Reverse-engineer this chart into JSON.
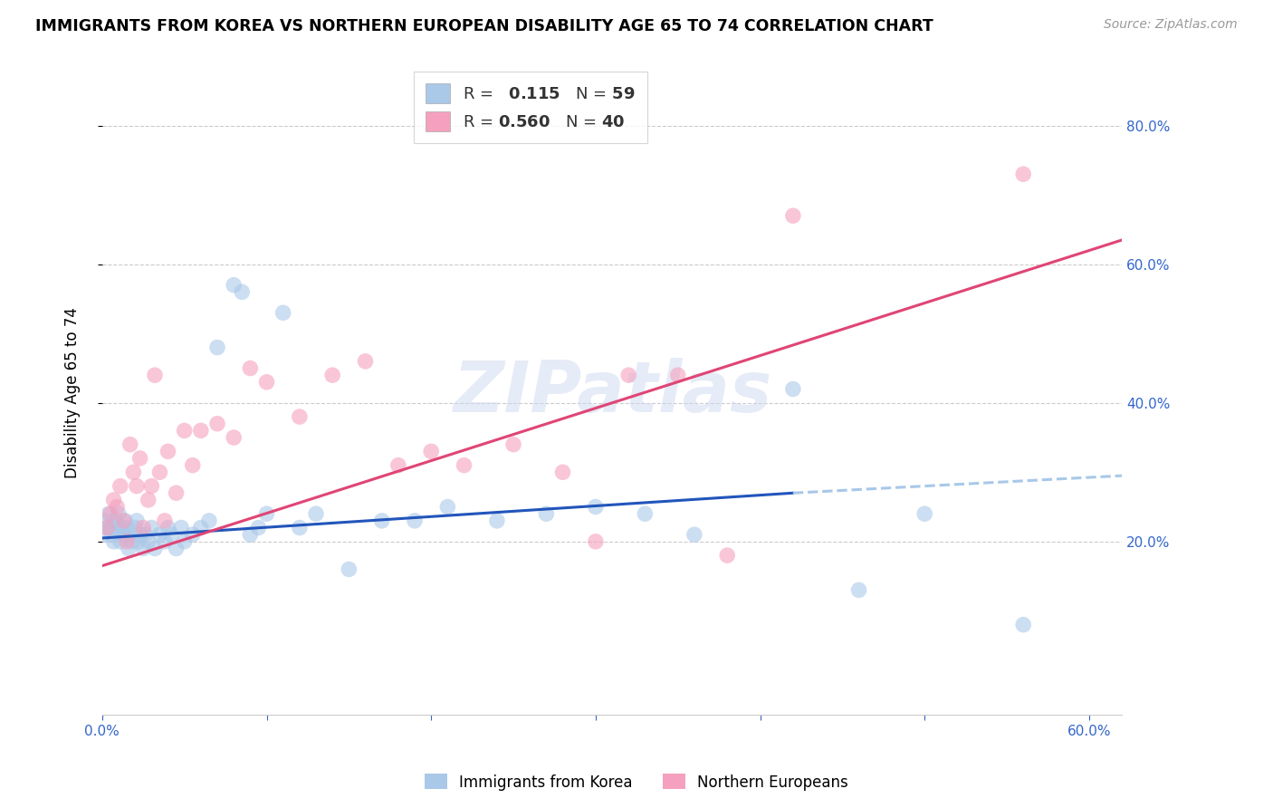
{
  "title": "IMMIGRANTS FROM KOREA VS NORTHERN EUROPEAN DISABILITY AGE 65 TO 74 CORRELATION CHART",
  "source": "Source: ZipAtlas.com",
  "ylabel": "Disability Age 65 to 74",
  "xlim": [
    0.0,
    0.62
  ],
  "ylim": [
    -0.05,
    0.88
  ],
  "yticks": [
    0.2,
    0.4,
    0.6,
    0.8
  ],
  "ytick_labels": [
    "20.0%",
    "40.0%",
    "60.0%",
    "80.0%"
  ],
  "xticks": [
    0.0,
    0.1,
    0.2,
    0.3,
    0.4,
    0.5,
    0.6
  ],
  "xtick_labels": [
    "0.0%",
    "",
    "",
    "",
    "",
    "",
    "60.0%"
  ],
  "korea_color": "#aac8e8",
  "northern_color": "#f5a0be",
  "korea_line_color": "#2255bb",
  "northern_line_color": "#e04575",
  "dashed_line_color": "#a8c8e8",
  "watermark": "ZIPatlas",
  "korea_scatter_x": [
    0.001,
    0.002,
    0.003,
    0.004,
    0.005,
    0.006,
    0.007,
    0.008,
    0.009,
    0.01,
    0.011,
    0.012,
    0.013,
    0.014,
    0.015,
    0.016,
    0.017,
    0.018,
    0.02,
    0.021,
    0.022,
    0.023,
    0.025,
    0.026,
    0.028,
    0.03,
    0.032,
    0.035,
    0.038,
    0.04,
    0.042,
    0.045,
    0.048,
    0.05,
    0.055,
    0.06,
    0.065,
    0.07,
    0.08,
    0.085,
    0.09,
    0.095,
    0.1,
    0.11,
    0.12,
    0.13,
    0.15,
    0.17,
    0.19,
    0.21,
    0.24,
    0.27,
    0.3,
    0.33,
    0.36,
    0.42,
    0.46,
    0.5,
    0.56
  ],
  "korea_scatter_y": [
    0.21,
    0.23,
    0.22,
    0.24,
    0.22,
    0.21,
    0.2,
    0.23,
    0.22,
    0.24,
    0.2,
    0.22,
    0.21,
    0.23,
    0.22,
    0.19,
    0.21,
    0.2,
    0.22,
    0.23,
    0.2,
    0.21,
    0.19,
    0.21,
    0.2,
    0.22,
    0.19,
    0.21,
    0.2,
    0.22,
    0.21,
    0.19,
    0.22,
    0.2,
    0.21,
    0.22,
    0.23,
    0.48,
    0.57,
    0.56,
    0.21,
    0.22,
    0.24,
    0.53,
    0.22,
    0.24,
    0.16,
    0.23,
    0.23,
    0.25,
    0.23,
    0.24,
    0.25,
    0.24,
    0.21,
    0.42,
    0.13,
    0.24,
    0.08
  ],
  "northern_scatter_x": [
    0.003,
    0.005,
    0.007,
    0.009,
    0.011,
    0.013,
    0.015,
    0.017,
    0.019,
    0.021,
    0.023,
    0.025,
    0.028,
    0.03,
    0.032,
    0.035,
    0.038,
    0.04,
    0.045,
    0.05,
    0.055,
    0.06,
    0.07,
    0.08,
    0.09,
    0.1,
    0.12,
    0.14,
    0.16,
    0.18,
    0.2,
    0.22,
    0.25,
    0.28,
    0.3,
    0.32,
    0.35,
    0.38,
    0.42,
    0.56
  ],
  "northern_scatter_y": [
    0.22,
    0.24,
    0.26,
    0.25,
    0.28,
    0.23,
    0.2,
    0.34,
    0.3,
    0.28,
    0.32,
    0.22,
    0.26,
    0.28,
    0.44,
    0.3,
    0.23,
    0.33,
    0.27,
    0.36,
    0.31,
    0.36,
    0.37,
    0.35,
    0.45,
    0.43,
    0.38,
    0.44,
    0.46,
    0.31,
    0.33,
    0.31,
    0.34,
    0.3,
    0.2,
    0.44,
    0.44,
    0.18,
    0.67,
    0.73
  ],
  "korea_trend_x": [
    0.0,
    0.42
  ],
  "korea_trend_y": [
    0.205,
    0.27
  ],
  "dashed_trend_x": [
    0.42,
    0.62
  ],
  "dashed_trend_y": [
    0.27,
    0.295
  ],
  "northern_trend_x": [
    0.0,
    0.62
  ],
  "northern_trend_y": [
    0.165,
    0.635
  ]
}
